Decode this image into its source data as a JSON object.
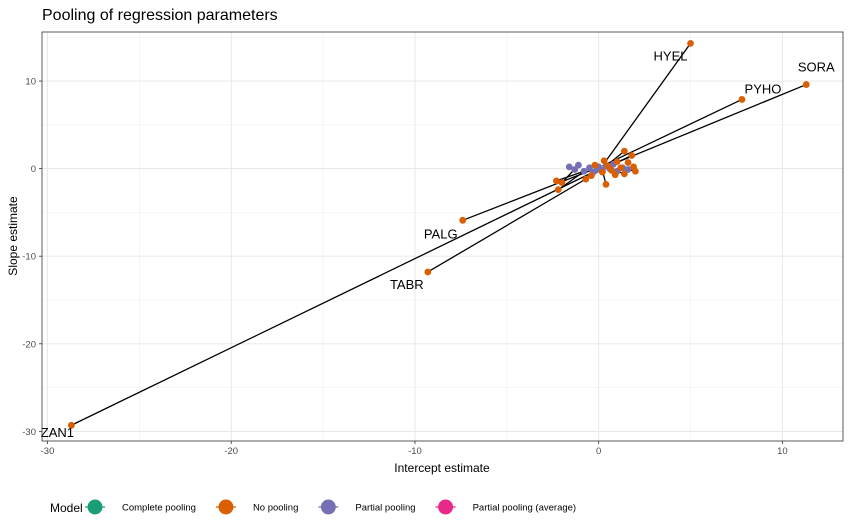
{
  "chart_data": {
    "type": "scatter",
    "title": "Pooling of regression parameters",
    "xlabel": "Intercept estimate",
    "ylabel": "Slope estimate",
    "xlim": [
      -30.3,
      13.3
    ],
    "ylim": [
      -31.1,
      15.6
    ],
    "xticks": [
      -30,
      -20,
      -10,
      0,
      10
    ],
    "yticks": [
      -30,
      -20,
      -10,
      0,
      10
    ],
    "grid": true,
    "legend": {
      "title": "Model",
      "position": "bottom",
      "entries": [
        {
          "label": "Complete pooling",
          "color": "#1b9e77"
        },
        {
          "label": "No pooling",
          "color": "#d95f02"
        },
        {
          "label": "Partial pooling",
          "color": "#7570b3"
        },
        {
          "label": "Partial pooling (average)",
          "color": "#e7298a"
        }
      ]
    },
    "series": [
      {
        "name": "No pooling",
        "color": "#d95f02",
        "points": [
          {
            "x": -28.7,
            "y": -29.3,
            "label": "ZAN1"
          },
          {
            "x": 11.3,
            "y": 9.6,
            "label": "SORA"
          },
          {
            "x": 5.0,
            "y": 14.3,
            "label": "HYEL"
          },
          {
            "x": 7.8,
            "y": 7.9,
            "label": "PYHO"
          },
          {
            "x": -7.4,
            "y": -5.9,
            "label": "PALG"
          },
          {
            "x": -9.3,
            "y": -11.8,
            "label": "TABR"
          },
          {
            "x": -2.3,
            "y": -1.4
          },
          {
            "x": -2.2,
            "y": -2.4
          },
          {
            "x": -2.0,
            "y": -1.6
          },
          {
            "x": -0.7,
            "y": -1.2
          },
          {
            "x": -0.4,
            "y": -0.8
          },
          {
            "x": 0.3,
            "y": 0.9
          },
          {
            "x": 0.4,
            "y": -1.8
          },
          {
            "x": 0.5,
            "y": 0.3
          },
          {
            "x": 0.7,
            "y": -0.2
          },
          {
            "x": 1.0,
            "y": 0.8
          },
          {
            "x": 1.2,
            "y": 0.1
          },
          {
            "x": 1.4,
            "y": 2.0
          },
          {
            "x": 1.4,
            "y": -0.6
          },
          {
            "x": 1.6,
            "y": 0.7
          },
          {
            "x": 1.8,
            "y": 1.5
          },
          {
            "x": 1.9,
            "y": 0.2
          },
          {
            "x": 2.0,
            "y": -0.3
          },
          {
            "x": 0.9,
            "y": -0.7
          },
          {
            "x": -0.2,
            "y": 0.4
          },
          {
            "x": 0.2,
            "y": -0.4
          }
        ]
      },
      {
        "name": "Partial pooling",
        "color": "#7570b3",
        "points": [
          {
            "x": -1.6,
            "y": 0.2
          },
          {
            "x": -1.3,
            "y": -0.1
          },
          {
            "x": -1.1,
            "y": 0.4
          },
          {
            "x": -0.8,
            "y": -0.3
          },
          {
            "x": -0.5,
            "y": 0.1
          },
          {
            "x": -0.3,
            "y": -0.4
          },
          {
            "x": 0.0,
            "y": 0.2
          },
          {
            "x": 0.2,
            "y": -0.2
          },
          {
            "x": 0.4,
            "y": 0.3
          },
          {
            "x": 0.6,
            "y": 0.0
          },
          {
            "x": 0.8,
            "y": 0.5
          },
          {
            "x": 1.0,
            "y": -0.3
          },
          {
            "x": 1.3,
            "y": 0.1
          },
          {
            "x": 1.6,
            "y": -0.1
          },
          {
            "x": -0.1,
            "y": -0.1
          }
        ]
      }
    ],
    "shrinkage_lines": [
      {
        "from": [
          -28.7,
          -29.3
        ],
        "to": [
          0.2,
          0.1
        ]
      },
      {
        "from": [
          11.3,
          9.6
        ],
        "to": [
          0.4,
          0.2
        ]
      },
      {
        "from": [
          5.0,
          14.3
        ],
        "to": [
          0.3,
          0.6
        ]
      },
      {
        "from": [
          7.8,
          7.9
        ],
        "to": [
          0.2,
          0.3
        ]
      },
      {
        "from": [
          -7.4,
          -5.9
        ],
        "to": [
          -0.3,
          -0.1
        ]
      },
      {
        "from": [
          -9.3,
          -11.8
        ],
        "to": [
          0.1,
          -0.2
        ]
      },
      {
        "from": [
          -2.3,
          -1.4
        ],
        "to": [
          -0.8,
          -0.3
        ]
      },
      {
        "from": [
          -2.2,
          -2.4
        ],
        "to": [
          -0.5,
          0.1
        ]
      },
      {
        "from": [
          -2.0,
          -1.6
        ],
        "to": [
          -1.1,
          0.4
        ]
      },
      {
        "from": [
          1.8,
          1.5
        ],
        "to": [
          0.8,
          0.5
        ]
      },
      {
        "from": [
          1.4,
          2.0
        ],
        "to": [
          0.4,
          0.3
        ]
      },
      {
        "from": [
          1.9,
          0.2
        ],
        "to": [
          1.3,
          0.1
        ]
      },
      {
        "from": [
          2.0,
          -0.3
        ],
        "to": [
          1.6,
          -0.1
        ]
      },
      {
        "from": [
          1.4,
          -0.6
        ],
        "to": [
          1.0,
          -0.3
        ]
      },
      {
        "from": [
          0.4,
          -1.8
        ],
        "to": [
          0.2,
          -0.2
        ]
      },
      {
        "from": [
          -0.7,
          -1.2
        ],
        "to": [
          -0.3,
          -0.4
        ]
      }
    ]
  }
}
